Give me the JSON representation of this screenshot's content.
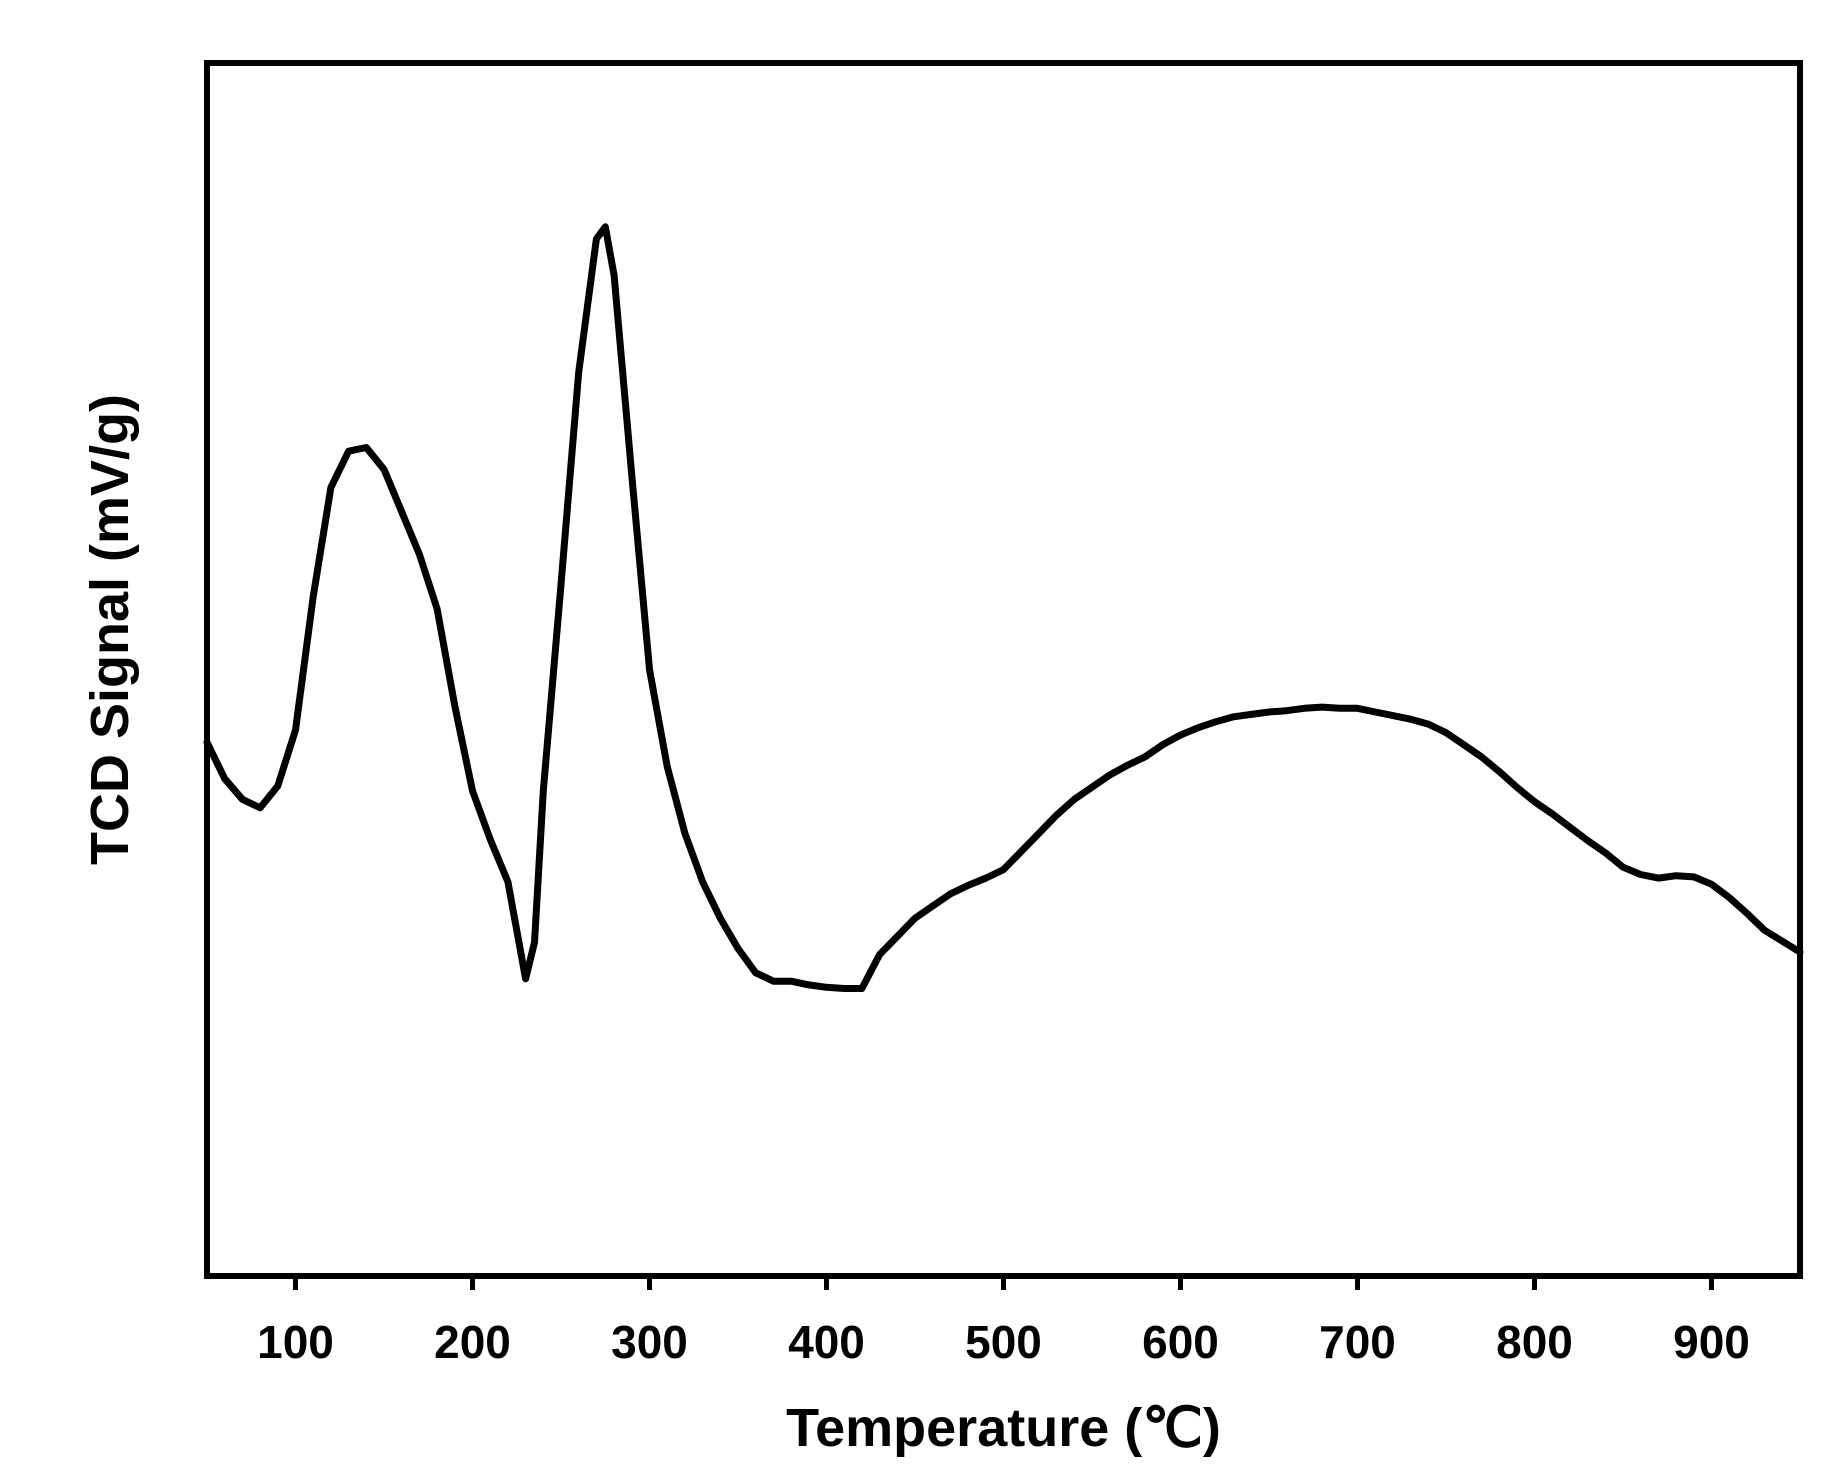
{
  "chart_data": {
    "type": "line",
    "title": "",
    "xlabel": "Temperature (℃)",
    "ylabel": "TCD Signal (mV/g)",
    "xlim": [
      50,
      950
    ],
    "ylim": [
      0,
      100
    ],
    "y_tick_labels_shown": false,
    "x_ticks": [
      100,
      200,
      300,
      400,
      500,
      600,
      700,
      800,
      900
    ],
    "x_tick_labels": [
      "100",
      "200",
      "300",
      "400",
      "500",
      "600",
      "700",
      "800",
      "900"
    ],
    "grid": false,
    "legend": "none",
    "colors": {
      "line": "#000000",
      "frame": "#000000",
      "background": "#ffffff"
    },
    "series": [
      {
        "x": [
          50,
          60,
          70,
          80,
          90,
          100,
          110,
          120,
          130,
          140,
          150,
          160,
          170,
          180,
          190,
          200,
          210,
          220,
          230,
          235,
          240,
          250,
          260,
          270,
          275,
          280,
          290,
          300,
          310,
          320,
          330,
          340,
          350,
          360,
          370,
          380,
          390,
          400,
          410,
          420,
          430,
          440,
          450,
          460,
          470,
          480,
          490,
          500,
          510,
          520,
          530,
          540,
          550,
          560,
          570,
          580,
          590,
          600,
          610,
          620,
          630,
          640,
          650,
          660,
          670,
          680,
          690,
          700,
          710,
          720,
          730,
          740,
          750,
          760,
          770,
          780,
          790,
          800,
          810,
          820,
          830,
          840,
          850,
          860,
          870,
          880,
          890,
          900,
          910,
          920,
          930,
          940,
          950
        ],
        "y": [
          44,
          41,
          39.3,
          38.6,
          40.4,
          45,
          56,
          65,
          68,
          68.3,
          66.5,
          63,
          59.5,
          55,
          47,
          40,
          36,
          32.5,
          24.5,
          27.5,
          40,
          57,
          74.5,
          85.5,
          86.5,
          82.5,
          66,
          50,
          42,
          36.5,
          32.5,
          29.5,
          27,
          25,
          24.3,
          24.3,
          24,
          23.8,
          23.7,
          23.7,
          26.5,
          28,
          29.5,
          30.5,
          31.5,
          32.2,
          32.8,
          33.5,
          35,
          36.5,
          38,
          39.3,
          40.3,
          41.3,
          42.1,
          42.8,
          43.8,
          44.6,
          45.2,
          45.7,
          46.1,
          46.3,
          46.5,
          46.6,
          46.8,
          46.9,
          46.8,
          46.8,
          46.5,
          46.2,
          45.9,
          45.5,
          44.8,
          43.8,
          42.8,
          41.6,
          40.3,
          39.1,
          38.1,
          37,
          35.9,
          34.9,
          33.7,
          33.1,
          32.8,
          33,
          32.9,
          32.3,
          31.2,
          29.9,
          28.5,
          27.6,
          26.7
        ]
      }
    ]
  }
}
